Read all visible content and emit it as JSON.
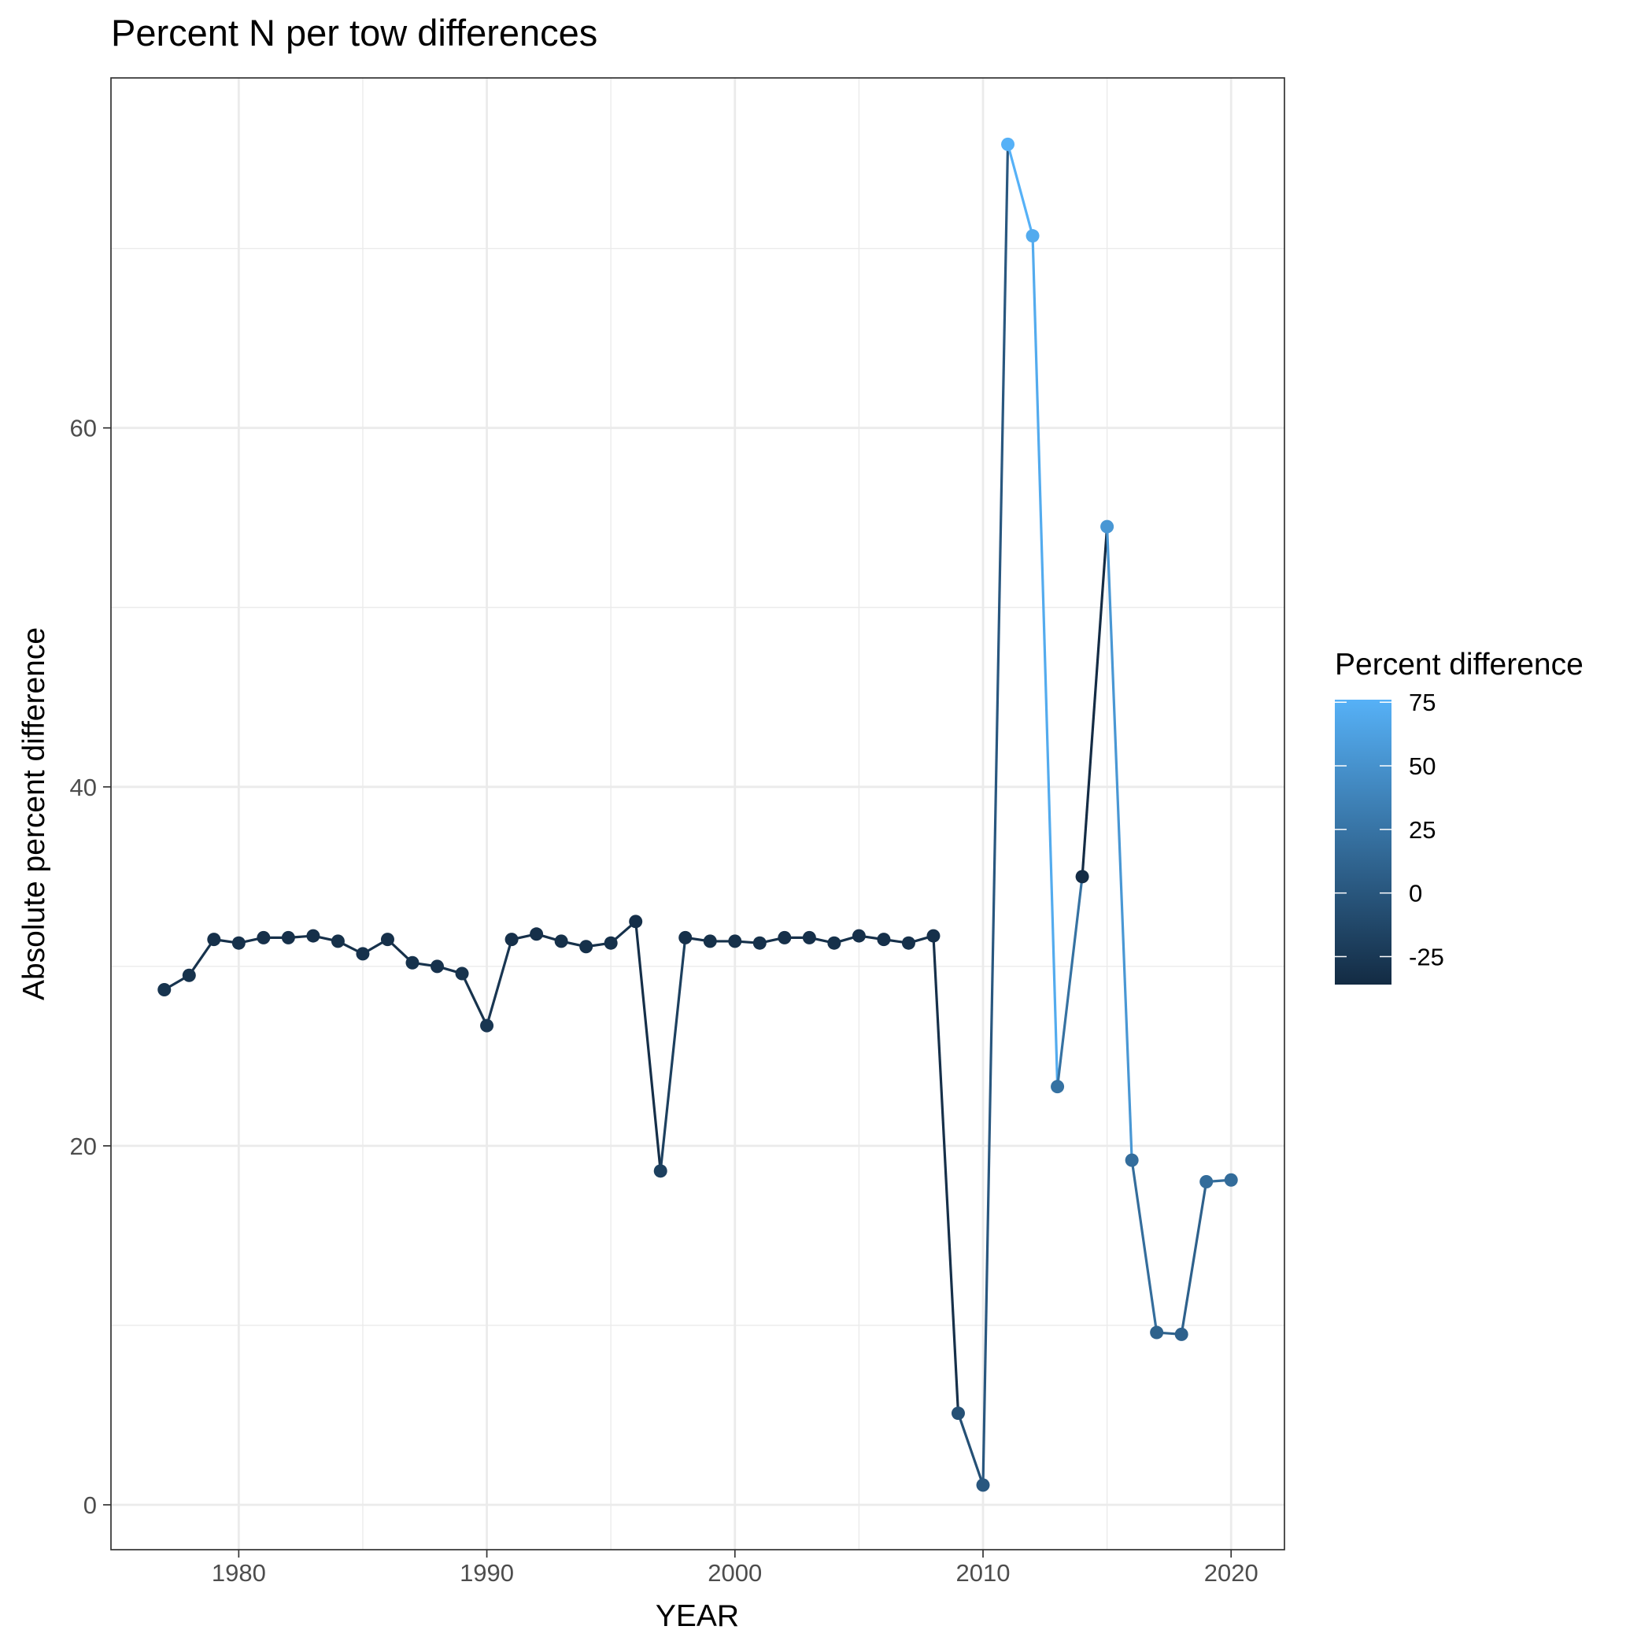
{
  "chart_data": {
    "type": "line",
    "title": "Percent N per tow differences",
    "xlabel": "YEAR",
    "ylabel": "Absolute percent difference",
    "xlim": [
      1974.85,
      2022.15
    ],
    "ylim": [
      -2.5,
      79.5
    ],
    "xticks": [
      1980,
      1990,
      2000,
      2010,
      2020
    ],
    "xtick_labels": [
      "1980",
      "1990",
      "2000",
      "2010",
      "2020"
    ],
    "yticks": [
      0,
      20,
      40,
      60
    ],
    "ytick_labels": [
      "0",
      "20",
      "40",
      "60"
    ],
    "grid": true,
    "legend": {
      "title": "Percent difference",
      "placement": "right",
      "color_range": [
        -36,
        76
      ],
      "low_color": "#132b43",
      "high_color": "#56b1f7",
      "ticks": [
        75,
        50,
        25,
        0,
        -25
      ],
      "tick_labels": [
        "75",
        "50",
        "25",
        "0",
        "-25"
      ]
    },
    "series": [
      {
        "x": [
          1977,
          1978,
          1979,
          1980,
          1981,
          1982,
          1983,
          1984,
          1985,
          1986,
          1987,
          1988,
          1989,
          1990,
          1991,
          1992,
          1993,
          1994,
          1995,
          1996,
          1997,
          1998,
          1999,
          2000,
          2001,
          2002,
          2003,
          2004,
          2005,
          2006,
          2007,
          2008,
          2009,
          2010,
          2011,
          2012,
          2013,
          2014,
          2015,
          2016,
          2017,
          2018,
          2019,
          2020
        ],
        "y": [
          28.7,
          29.5,
          31.5,
          31.3,
          31.6,
          31.6,
          31.7,
          31.4,
          30.7,
          31.5,
          30.2,
          30.0,
          29.6,
          26.7,
          31.5,
          31.8,
          31.4,
          31.1,
          31.3,
          32.5,
          18.6,
          31.6,
          31.4,
          31.4,
          31.3,
          31.6,
          31.6,
          31.3,
          31.7,
          31.5,
          31.3,
          31.7,
          5.1,
          1.1,
          75.8,
          70.7,
          23.3,
          35.0,
          54.5,
          19.2,
          9.6,
          9.5,
          18.0,
          18.1
        ],
        "color_values": [
          -28.7,
          -29.5,
          -31.5,
          -31.3,
          -31.6,
          -31.6,
          -31.7,
          -31.4,
          -30.7,
          -31.5,
          -30.2,
          -30.0,
          -29.6,
          -26.7,
          -31.5,
          -31.8,
          -31.4,
          -31.1,
          -31.3,
          -32.5,
          -18.6,
          -31.6,
          -31.4,
          -31.4,
          -31.3,
          -31.6,
          -31.6,
          -31.3,
          -31.7,
          -31.5,
          -31.3,
          -31.7,
          -5.1,
          1.1,
          75.8,
          70.7,
          23.3,
          -35.0,
          54.5,
          19.2,
          9.6,
          9.5,
          18.0,
          18.1
        ]
      }
    ]
  }
}
